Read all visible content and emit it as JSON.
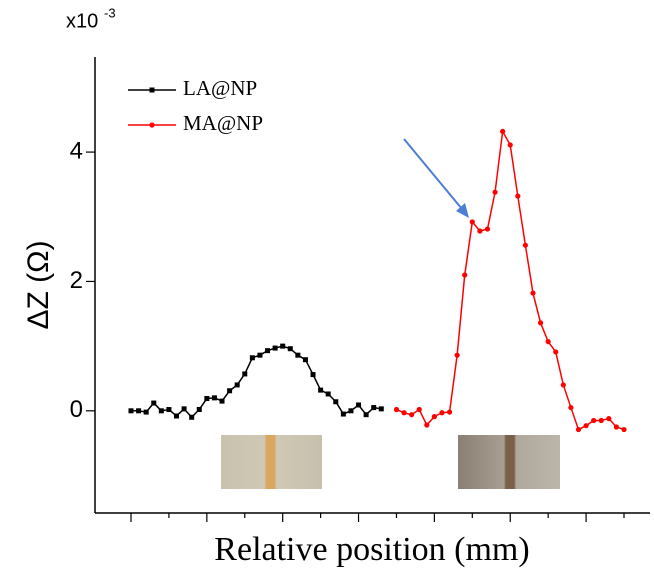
{
  "chart_data": {
    "type": "line",
    "multiplier": {
      "base": "x10",
      "exponent": "-3"
    },
    "y_label": "ΔZ (Ω)",
    "x_label": "Relative position (mm)",
    "categories": [
      null,
      null,
      null,
      null,
      null,
      null,
      null,
      null,
      null,
      null,
      null,
      null,
      null,
      null,
      null,
      null,
      null,
      null,
      null,
      null,
      null,
      null,
      null,
      null,
      null,
      null,
      null,
      null,
      null,
      null,
      null,
      null,
      null,
      null,
      null,
      null,
      null,
      null,
      null,
      null,
      null,
      null,
      null,
      null,
      null,
      null,
      null,
      null,
      null,
      null,
      null,
      null,
      null,
      null,
      null,
      null,
      null,
      null,
      null,
      null,
      null,
      null,
      null,
      null,
      null,
      null
    ],
    "series": [
      {
        "name": "LA@NP",
        "color": "#000000",
        "marker": "square",
        "values": [
          0,
          0,
          -0.02,
          0.12,
          0,
          0.02,
          -0.08,
          0.03,
          -0.1,
          0.02,
          0.19,
          0.2,
          0.15,
          0.31,
          0.4,
          0.57,
          0.82,
          0.86,
          0.93,
          0.97,
          1.0,
          0.96,
          0.86,
          0.79,
          0.56,
          0.32,
          0.26,
          0.14,
          -0.05,
          0,
          0.09,
          -0.06,
          0.05,
          0.03,
          null,
          null,
          null,
          null,
          null,
          null,
          null,
          null,
          null,
          null,
          null,
          null,
          null,
          null,
          null,
          null,
          null,
          null,
          null,
          null,
          null,
          null,
          null,
          null,
          null,
          null,
          null,
          null,
          null,
          null,
          null,
          null
        ]
      },
      {
        "name": "MA@NP",
        "color": "#ff0000",
        "marker": "circle",
        "values": [
          null,
          null,
          null,
          null,
          null,
          null,
          null,
          null,
          null,
          null,
          null,
          null,
          null,
          null,
          null,
          null,
          null,
          null,
          null,
          null,
          null,
          null,
          null,
          null,
          null,
          null,
          null,
          null,
          null,
          null,
          null,
          null,
          null,
          null,
          null,
          0.02,
          -0.03,
          -0.06,
          0.02,
          -0.22,
          -0.09,
          -0.03,
          -0.02,
          0.86,
          2.1,
          2.92,
          2.78,
          2.81,
          3.38,
          4.32,
          4.11,
          3.32,
          2.56,
          1.82,
          1.36,
          1.07,
          0.91,
          0.4,
          0.05,
          -0.29,
          -0.23,
          -0.15,
          -0.15,
          -0.12,
          -0.25,
          -0.29
        ]
      }
    ],
    "ylim": [
      -1.58,
      5.47
    ],
    "yticks": [
      0,
      2,
      4
    ],
    "legend": "upper left"
  }
}
